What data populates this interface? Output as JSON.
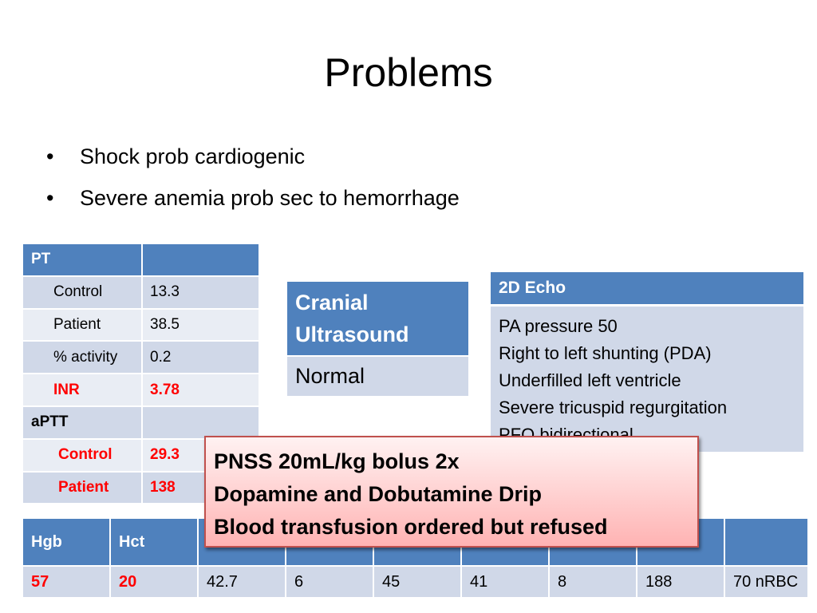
{
  "slide": {
    "title": "Problems",
    "bullets": [
      {
        "symbol": "•",
        "text": "Shock prob cardiogenic"
      },
      {
        "symbol": "•",
        "text": "Severe anemia prob sec to hemorrhage"
      }
    ]
  },
  "pt_table": {
    "header": "PT",
    "rows": [
      {
        "label": "Control",
        "value": "13.3"
      },
      {
        "label": "Patient",
        "value": "38.5"
      },
      {
        "label": "% activity",
        "value": "0.2"
      },
      {
        "label": "INR",
        "value": "3.78"
      }
    ],
    "aptt_header": "aPTT",
    "aptt_rows": [
      {
        "label": "Control",
        "value": "29.3"
      },
      {
        "label": "Patient",
        "value": "138"
      }
    ]
  },
  "cranial": {
    "header": "Cranial Ultrasound",
    "value": "Normal"
  },
  "echo": {
    "header": "2D Echo",
    "lines": [
      "PA pressure 50",
      "Right to left shunting (PDA)",
      "Underfilled left ventricle",
      "Severe tricuspid regurgitation",
      "PFO bidirectional"
    ]
  },
  "callout": {
    "lines": [
      "PNSS 20mL/kg bolus 2x",
      "Dopamine and Dobutamine Drip",
      "Blood transfusion ordered but refused"
    ]
  },
  "cbc_table": {
    "headers": [
      "Hgb",
      "Hct",
      "",
      "",
      "",
      "",
      "",
      "",
      ""
    ],
    "values": [
      "57",
      "20",
      "42.7",
      "6",
      "45",
      "41",
      "8",
      "188",
      "70 nRBC"
    ]
  },
  "colors": {
    "header_blue": "#4f81bd",
    "row_dark": "#d0d8e8",
    "row_light": "#e9edf4",
    "alert_red": "#ff0000",
    "callout_border": "#c0504d"
  }
}
